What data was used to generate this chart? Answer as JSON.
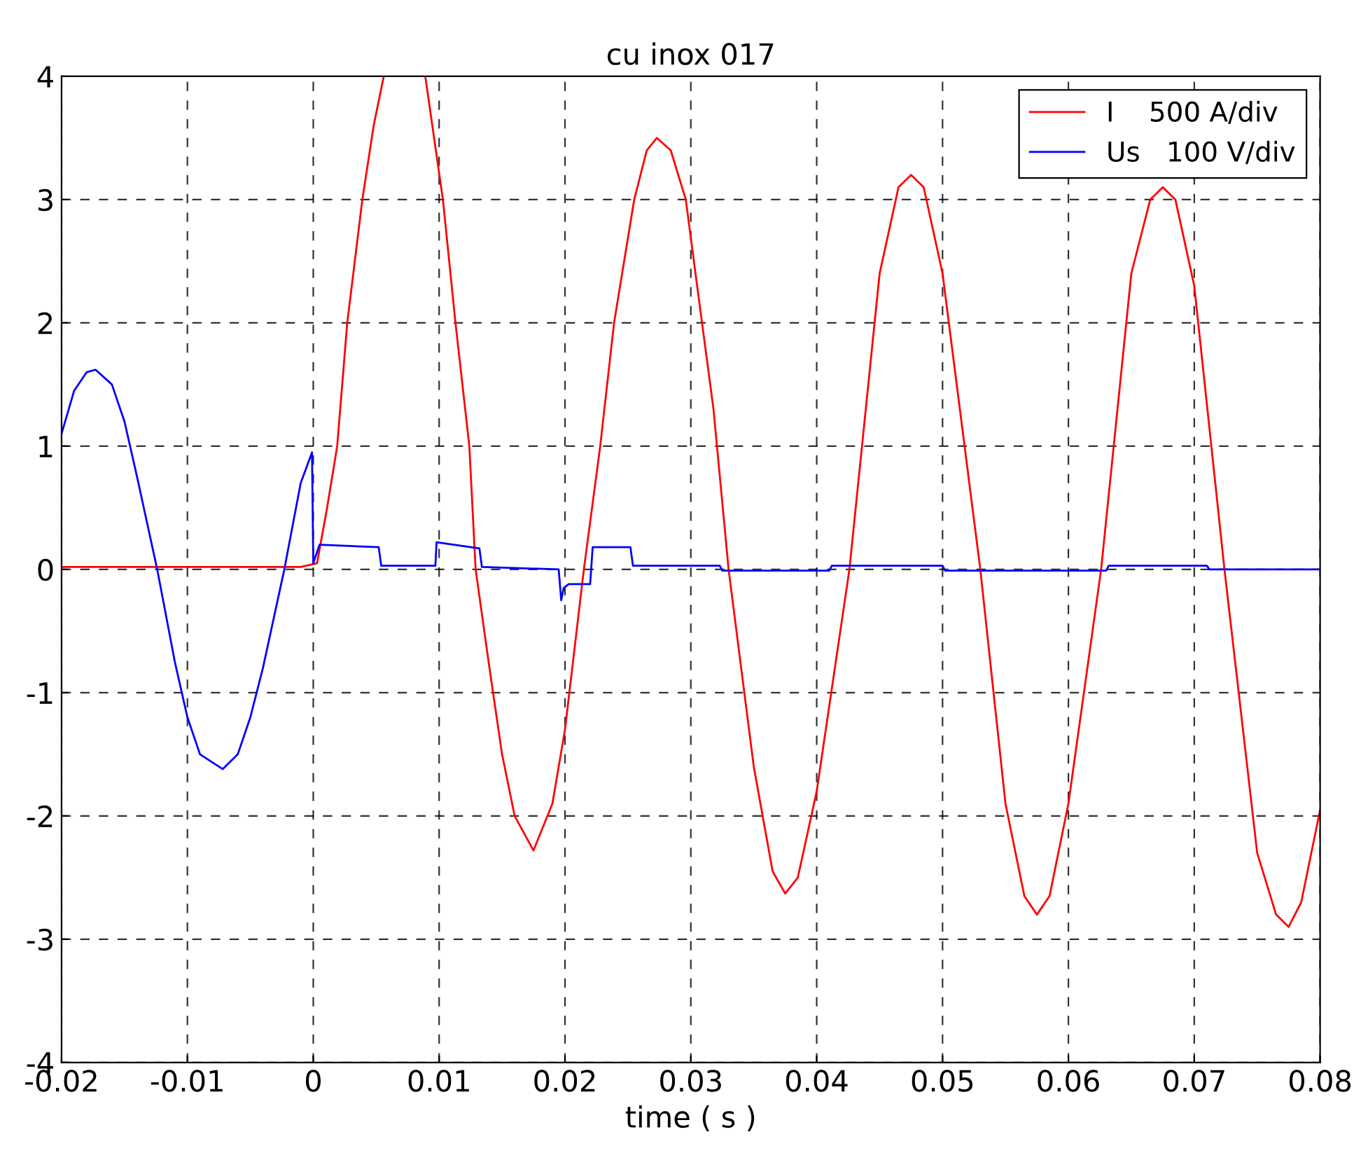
{
  "chart_data": {
    "type": "line",
    "title": "cu inox 017",
    "xlabel": "time ( s )",
    "xlim": [
      -0.02,
      0.08
    ],
    "ylim": [
      -4,
      4
    ],
    "xticks": [
      -0.02,
      -0.01,
      0,
      0.01,
      0.02,
      0.03,
      0.04,
      0.05,
      0.06,
      0.07,
      0.08
    ],
    "yticks": [
      -4,
      -3,
      -2,
      -1,
      0,
      1,
      2,
      3,
      4
    ],
    "grid": true,
    "legend": "top right",
    "line_style": "solid",
    "marker": "none",
    "series": [
      {
        "name": "I    500 A/div",
        "color": "#ff0000",
        "x": [
          -0.02,
          -0.015,
          -0.01,
          -0.005,
          -0.001,
          0.0003,
          0.0011,
          0.0019,
          0.0027,
          0.0039,
          0.0048,
          0.0056,
          0.0072,
          0.0089,
          0.0103,
          0.0113,
          0.0124,
          0.0129,
          0.014,
          0.015,
          0.016,
          0.0175,
          0.019,
          0.02,
          0.0215,
          0.0228,
          0.0239,
          0.0255,
          0.0265,
          0.0273,
          0.0284,
          0.0296,
          0.0305,
          0.0318,
          0.033,
          0.035,
          0.0365,
          0.0375,
          0.0385,
          0.04,
          0.0426,
          0.045,
          0.0465,
          0.0475,
          0.0485,
          0.05,
          0.053,
          0.055,
          0.0565,
          0.0575,
          0.0585,
          0.06,
          0.0626,
          0.065,
          0.0665,
          0.0675,
          0.0685,
          0.07,
          0.0724,
          0.075,
          0.0765,
          0.0775,
          0.0785,
          0.08
        ],
        "values": [
          0.02,
          0.02,
          0.02,
          0.02,
          0.02,
          0.05,
          0.5,
          1.0,
          2.0,
          3.0,
          3.6,
          4.0,
          null,
          4.0,
          3.0,
          2.0,
          1.0,
          0.0,
          -0.8,
          -1.5,
          -2.0,
          -2.28,
          -1.9,
          -1.3,
          0.0,
          1.0,
          2.0,
          3.0,
          3.4,
          3.5,
          3.4,
          3.0,
          2.3,
          1.3,
          0.0,
          -1.6,
          -2.45,
          -2.63,
          -2.5,
          -1.8,
          0.0,
          2.4,
          3.1,
          3.2,
          3.1,
          2.4,
          0.0,
          -1.9,
          -2.65,
          -2.8,
          -2.65,
          -1.9,
          0.0,
          2.4,
          3.0,
          3.1,
          3.0,
          2.3,
          0.0,
          -2.3,
          -2.8,
          -2.9,
          -2.7,
          -1.95
        ]
      },
      {
        "name": "Us   100 V/div",
        "color": "#0000ff",
        "x": [
          -0.02,
          -0.019,
          -0.018,
          -0.0173,
          -0.016,
          -0.015,
          -0.014,
          -0.0124,
          -0.011,
          -0.01,
          -0.009,
          -0.0072,
          -0.006,
          -0.005,
          -0.004,
          -0.0023,
          -0.001,
          -0.0001,
          0.0,
          0.0005,
          0.0052,
          0.0054,
          0.0097,
          0.0098,
          0.0132,
          0.0134,
          0.0195,
          0.0197,
          0.0199,
          0.0203,
          0.022,
          0.0222,
          0.0252,
          0.0254,
          0.0323,
          0.0325,
          0.041,
          0.0412,
          0.05,
          0.0502,
          0.063,
          0.0632,
          0.071,
          0.0712,
          0.08
        ],
        "values": [
          1.1,
          1.45,
          1.6,
          1.62,
          1.5,
          1.2,
          0.75,
          0.0,
          -0.75,
          -1.2,
          -1.5,
          -1.62,
          -1.5,
          -1.2,
          -0.8,
          0.0,
          0.7,
          0.95,
          0.05,
          0.2,
          0.18,
          0.03,
          0.03,
          0.22,
          0.17,
          0.02,
          0.0,
          -0.25,
          -0.15,
          -0.12,
          -0.12,
          0.18,
          0.18,
          0.03,
          0.03,
          -0.01,
          -0.01,
          0.03,
          0.03,
          -0.01,
          -0.01,
          0.03,
          0.03,
          0.0,
          0.0
        ]
      }
    ]
  }
}
